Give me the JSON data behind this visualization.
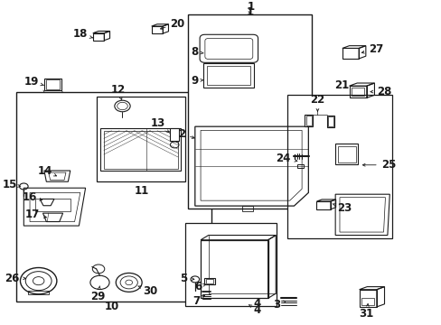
{
  "bg_color": "#ffffff",
  "line_color": "#1a1a1a",
  "fig_width": 4.89,
  "fig_height": 3.6,
  "dpi": 100,
  "boxes": {
    "10": [
      0.02,
      0.06,
      0.455,
      0.68
    ],
    "11": [
      0.205,
      0.455,
      0.205,
      0.275
    ],
    "1": [
      0.415,
      0.365,
      0.295,
      0.615
    ],
    "4": [
      0.41,
      0.055,
      0.21,
      0.265
    ],
    "21": [
      0.645,
      0.27,
      0.245,
      0.465
    ]
  },
  "label_font_size": 8.5
}
